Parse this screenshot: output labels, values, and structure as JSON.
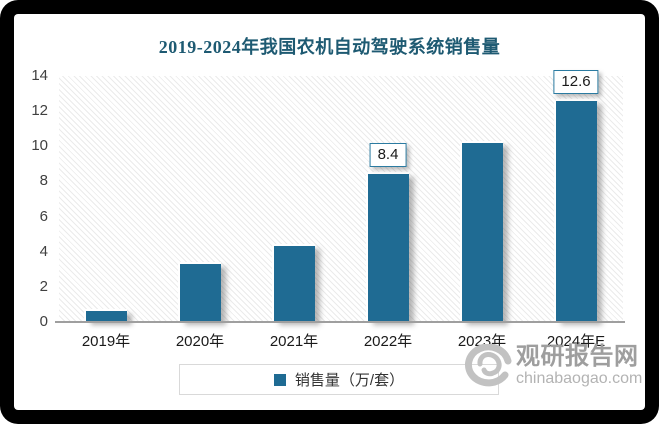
{
  "title": {
    "text": "2019-2024年我国农机自动驾驶系统销售量",
    "color": "#1E5A72"
  },
  "chart_data": {
    "type": "bar",
    "title": "2019-2024年我国农机自动驾驶系统销售量",
    "categories": [
      "2019年",
      "2020年",
      "2021年",
      "2022年",
      "2023年",
      "2024年E"
    ],
    "series": [
      {
        "name": "销售量（万/套）",
        "values": [
          0.6,
          3.3,
          4.3,
          8.4,
          10.2,
          12.6
        ]
      }
    ],
    "value_labels": [
      null,
      null,
      null,
      "8.4",
      null,
      "12.6"
    ],
    "ylabel": "",
    "xlabel": "",
    "ylim": [
      0,
      14
    ],
    "yticks": [
      0,
      2,
      4,
      6,
      8,
      10,
      12,
      14
    ],
    "grid": false,
    "legend_position": "bottom",
    "plot_background": "diagonal-hatch",
    "colors": {
      "bar": "#1F6B93",
      "title": "#1E5A72",
      "value_label_border": "#2B7BA1",
      "axis_line": "#9F9F9F",
      "tick_text": "#404040"
    }
  },
  "legend": {
    "label": "销售量（万/套）",
    "marker_color": "#1F6B93"
  },
  "watermark": {
    "name": "观研报告网",
    "url": "chinabaogao.com"
  }
}
